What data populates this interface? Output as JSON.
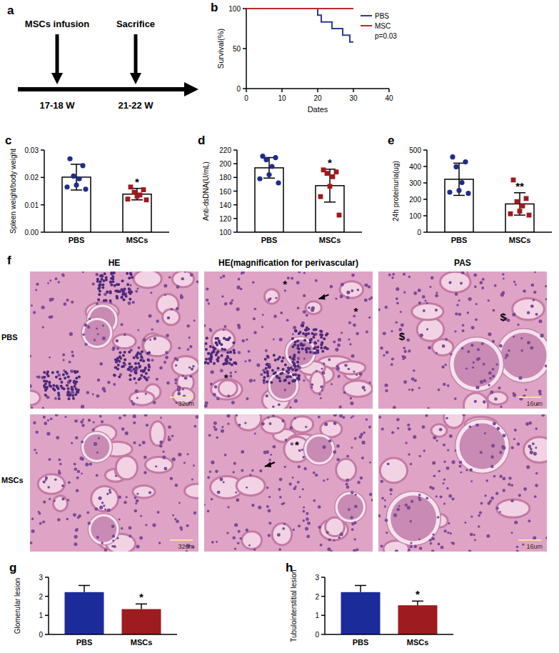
{
  "timeline": {
    "panel": "a",
    "events": [
      {
        "label": "MSCs infusion",
        "time": "17-18 W"
      },
      {
        "label": "Sacrifice",
        "time": "21-22 W"
      }
    ]
  },
  "chart_data": [
    {
      "panel": "b",
      "type": "line",
      "line_style": "step",
      "xlabel": "Dates",
      "ylabel": "Survival(%)",
      "xlim": [
        0,
        40
      ],
      "xticks": [
        0,
        10,
        20,
        30,
        40
      ],
      "ylim": [
        0,
        100
      ],
      "yticks": [
        0,
        50,
        100
      ],
      "legend": "upper right",
      "annotation": "p=0.03",
      "series": [
        {
          "name": "PBS",
          "color": "#2b3a9b",
          "x": [
            0,
            20,
            21,
            24,
            27,
            29,
            30
          ],
          "values": [
            100,
            91.7,
            83.3,
            75,
            66.7,
            58.3,
            58.3
          ]
        },
        {
          "name": "MSC",
          "color": "#c0282d",
          "x": [
            0,
            30
          ],
          "values": [
            100,
            100
          ]
        }
      ]
    },
    {
      "panel": "c",
      "type": "bar",
      "ylabel": "Spleen weight/body weight",
      "categories": [
        "PBS",
        "MSCs"
      ],
      "values": [
        0.0201,
        0.0139
      ],
      "errors": [
        0.0047,
        0.0021
      ],
      "points": [
        [
          0.0268,
          0.0243,
          0.0205,
          0.0195,
          0.0172,
          0.0165,
          0.0157
        ],
        [
          0.0165,
          0.0155,
          0.0146,
          0.0136,
          0.0131,
          0.0121,
          0.0118
        ]
      ],
      "colors": [
        "#1f2d8c",
        "#a3181c"
      ],
      "significance": [
        null,
        "*"
      ],
      "ylim": [
        0,
        0.03
      ],
      "yticks": [
        {
          "value": 0,
          "label": "0.00"
        },
        0.01,
        0.02,
        0.03
      ]
    },
    {
      "panel": "d",
      "type": "bar",
      "ylabel": "Anti-dsDNA(U/mL)",
      "categories": [
        "PBS",
        "MSCs"
      ],
      "values": [
        194,
        168
      ],
      "errors": [
        15,
        24
      ],
      "points": [
        [
          211,
          209,
          206,
          196,
          184,
          178,
          172
        ],
        [
          191,
          188,
          186,
          181,
          167,
          152,
          125
        ]
      ],
      "colors": [
        "#1f2d8c",
        "#a3181c"
      ],
      "significance": [
        null,
        "*"
      ],
      "ylim": [
        100,
        220
      ],
      "yticks": [
        100,
        120,
        140,
        160,
        180,
        200,
        220
      ]
    },
    {
      "panel": "e",
      "type": "bar",
      "ylabel": "24h proteinuria(ug)",
      "categories": [
        "PBS",
        "MSCs"
      ],
      "values": [
        322,
        172
      ],
      "errors": [
        98,
        68
      ],
      "points": [
        [
          458,
          428,
          398,
          302,
          254,
          243,
          236
        ],
        [
          318,
          205,
          186,
          160,
          128,
          112,
          104
        ]
      ],
      "colors": [
        "#1f2d8c",
        "#a3181c"
      ],
      "significance": [
        null,
        "**"
      ],
      "ylim": [
        0,
        500
      ],
      "yticks": [
        0,
        100,
        200,
        300,
        400,
        500
      ]
    },
    {
      "panel": "g",
      "type": "bar",
      "ylabel": "Glomerular lesion",
      "categories": [
        "PBS",
        "MSCs"
      ],
      "values": [
        2.22,
        1.33
      ],
      "errors": [
        0.35,
        0.27
      ],
      "colors": [
        "#1c2b9a",
        "#9e1b20"
      ],
      "significance": [
        null,
        "*"
      ],
      "ylim": [
        0,
        3
      ],
      "yticks": [
        0,
        1,
        2,
        3
      ]
    },
    {
      "panel": "h",
      "type": "bar",
      "ylabel": "Tubulointerstitial lesion",
      "categories": [
        "PBS",
        "MSCs"
      ],
      "values": [
        2.22,
        1.53
      ],
      "errors": [
        0.35,
        0.22
      ],
      "colors": [
        "#1c2b9a",
        "#9e1b20"
      ],
      "significance": [
        null,
        "*"
      ],
      "ylim": [
        0,
        3
      ],
      "yticks": [
        0,
        1,
        2,
        3
      ]
    }
  ],
  "histology": {
    "panel": "f",
    "columns": [
      "HE",
      "HE(magnification for perivascular)",
      "PAS"
    ],
    "rows": [
      "PBS",
      "MSCs"
    ],
    "scale_bars": [
      [
        "32um",
        null,
        "16um"
      ],
      [
        "32um",
        null,
        "16um"
      ]
    ],
    "cell_marks": [
      [
        [],
        [
          "*",
          "*",
          "*"
        ],
        [
          "$",
          "$"
        ]
      ],
      [
        [],
        [
          "*"
        ],
        []
      ]
    ]
  }
}
